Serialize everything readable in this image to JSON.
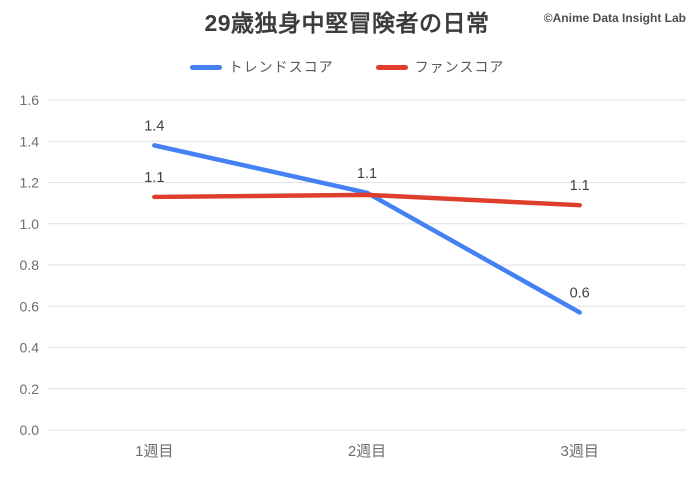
{
  "page": {
    "title": "29歳独身中堅冒険者の日常",
    "watermark": "©Anime Data Insight Lab"
  },
  "chart_data": {
    "type": "line",
    "title": "29歳独身中堅冒険者の日常",
    "watermark": "©Anime Data Insight Lab",
    "categories": [
      "1週目",
      "2週目",
      "3週目"
    ],
    "series": [
      {
        "name": "トレンドスコア",
        "slug": "trend-score",
        "color": "#4381f4",
        "values": [
          1.38,
          1.15,
          0.57
        ],
        "point_labels": [
          "1.4",
          "1.1",
          "0.6"
        ]
      },
      {
        "name": "ファンスコア",
        "slug": "fan-score",
        "color": "#df3e2d",
        "values": [
          1.13,
          1.14,
          1.09
        ],
        "point_labels": [
          "1.1",
          null,
          "1.1"
        ]
      }
    ],
    "xlabel": "",
    "ylabel": "",
    "ylim": [
      0,
      1.6
    ],
    "y_ticks": [
      "1.6",
      "1.4",
      "1.2",
      "1.0",
      "0.8",
      "0.6",
      "0.4",
      "0.2",
      "0.0"
    ],
    "grid": true,
    "legend_position": "top",
    "colors": {
      "grid": "#e2e2e2",
      "axis_text": "#6e6e6e",
      "label_text": "#3f3f3f",
      "title_text": "#3c3c3c",
      "watermark_text": "#4f4f4f",
      "legend_text": "#5a5a5a",
      "background": "#ffffff"
    }
  }
}
